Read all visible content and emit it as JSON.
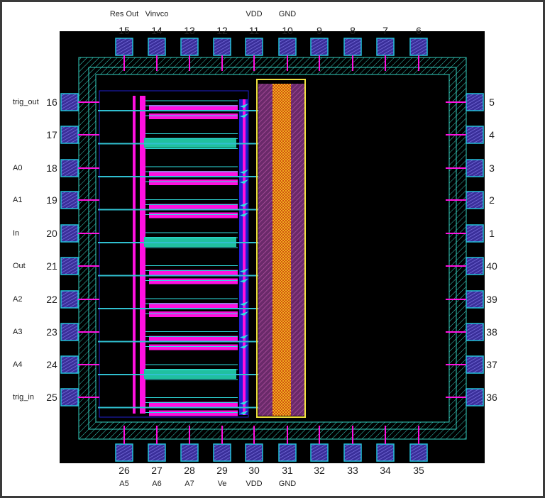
{
  "colors": {
    "background": "#000000",
    "pad_fill": "#4a3fb0",
    "pad_border": "#22c0d8",
    "ring": "#35d0c0",
    "metal_magenta": "#ff10e0",
    "metal_cyan": "#30e0e0",
    "metal_blue": "#2020d0",
    "vdd_rail": "#8a3a7a",
    "gnd_rail": "#f0b020"
  },
  "pins": {
    "top": [
      {
        "number": "15",
        "name": "Res Out"
      },
      {
        "number": "14",
        "name": "Vinvco"
      },
      {
        "number": "13",
        "name": ""
      },
      {
        "number": "12",
        "name": ""
      },
      {
        "number": "11",
        "name": "VDD"
      },
      {
        "number": "10",
        "name": "GND"
      },
      {
        "number": "9",
        "name": ""
      },
      {
        "number": "8",
        "name": ""
      },
      {
        "number": "7",
        "name": ""
      },
      {
        "number": "6",
        "name": ""
      }
    ],
    "left": [
      {
        "number": "16",
        "name": "trig_out"
      },
      {
        "number": "17",
        "name": ""
      },
      {
        "number": "18",
        "name": "A0"
      },
      {
        "number": "19",
        "name": "A1"
      },
      {
        "number": "20",
        "name": "In"
      },
      {
        "number": "21",
        "name": "Out"
      },
      {
        "number": "22",
        "name": "A2"
      },
      {
        "number": "23",
        "name": "A3"
      },
      {
        "number": "24",
        "name": "A4"
      },
      {
        "number": "25",
        "name": "trig_in"
      }
    ],
    "right": [
      {
        "number": "5",
        "name": ""
      },
      {
        "number": "4",
        "name": ""
      },
      {
        "number": "3",
        "name": ""
      },
      {
        "number": "2",
        "name": ""
      },
      {
        "number": "1",
        "name": ""
      },
      {
        "number": "40",
        "name": ""
      },
      {
        "number": "39",
        "name": ""
      },
      {
        "number": "38",
        "name": ""
      },
      {
        "number": "37",
        "name": ""
      },
      {
        "number": "36",
        "name": ""
      }
    ],
    "bottom": [
      {
        "number": "26",
        "name": "A5"
      },
      {
        "number": "27",
        "name": "A6"
      },
      {
        "number": "28",
        "name": "A7"
      },
      {
        "number": "29",
        "name": "Ve"
      },
      {
        "number": "30",
        "name": "VDD"
      },
      {
        "number": "31",
        "name": "GND"
      },
      {
        "number": "32",
        "name": ""
      },
      {
        "number": "33",
        "name": ""
      },
      {
        "number": "34",
        "name": ""
      },
      {
        "number": "35",
        "name": ""
      }
    ]
  }
}
